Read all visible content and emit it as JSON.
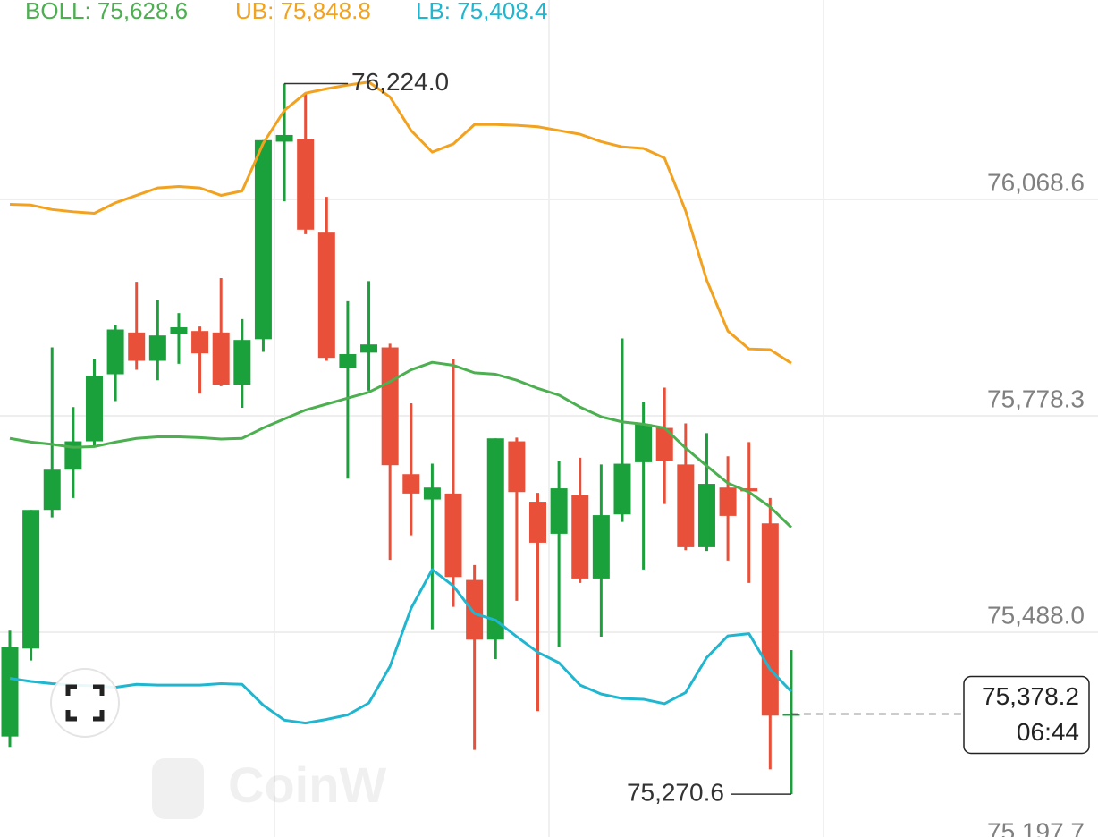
{
  "chart_data": {
    "type": "candlestick",
    "up_color": "#1ba13b",
    "down_color": "#e9503a",
    "categories": [
      null,
      null,
      null,
      null,
      null,
      null,
      null,
      null,
      null,
      null,
      null,
      null,
      null,
      null,
      null,
      null,
      null,
      null,
      null,
      null,
      null,
      null,
      null,
      null,
      null,
      null,
      null,
      null,
      null,
      null,
      null,
      null,
      null,
      null,
      null,
      null,
      null,
      null
    ],
    "open": [
      75348,
      75466,
      75652,
      75706,
      75744,
      75834,
      75890,
      75852,
      75888,
      75892,
      75890,
      75820,
      75881,
      76146,
      76150,
      76024,
      75843,
      75863,
      75870,
      75700,
      75666,
      75674,
      75558,
      75478,
      75744,
      75663,
      75620,
      75672,
      75560,
      75646,
      75716,
      75762,
      75713,
      75602,
      75682,
      75681,
      75634,
      75376
    ],
    "high": [
      75490,
      75652,
      75870,
      75790,
      75854,
      75900,
      75958,
      75933,
      75916,
      75898,
      75963,
      75908,
      76148,
      76224.0,
      76210,
      76072,
      75932,
      75959,
      75875,
      75795,
      75714,
      75854,
      75578,
      75748,
      75749,
      75675,
      75718,
      75722,
      75713,
      75882,
      75797,
      75816,
      75768,
      75755,
      75724,
      75743,
      75668,
      75464
    ],
    "low": [
      75334,
      75450,
      75642,
      75668,
      75738,
      75798,
      75840,
      75826,
      75848,
      75808,
      75818,
      75789,
      75864,
      76066,
      76022,
      75852,
      75694,
      75812,
      75585,
      75618,
      75492,
      75522,
      75330,
      75452,
      75530,
      75382,
      75468,
      75554,
      75482,
      75636,
      75572,
      75660,
      75598,
      75597,
      75584,
      75554,
      75304,
      75270.6
    ],
    "close": [
      75468,
      75652,
      75706,
      75744,
      75832,
      75894,
      75852,
      75886,
      75897,
      75862,
      75820,
      75880,
      76148,
      76155,
      76028,
      75856,
      75861,
      75874,
      75712,
      75674,
      75682,
      75562,
      75478,
      75748,
      75676,
      75608,
      75681,
      75560,
      75645,
      75714,
      75767,
      75718,
      75602,
      75687,
      75644,
      75677,
      75376,
      75378.2
    ],
    "series": [
      {
        "name": "BOLL: 75,628.6",
        "type": "line",
        "color": "#4caf50",
        "values": [
          75748,
          75743,
          75740,
          75736,
          75737,
          75743,
          75748,
          75750,
          75750,
          75749,
          75747,
          75748,
          75762,
          75774,
          75786,
          75794,
          75802,
          75810,
          75824,
          75840,
          75850,
          75846,
          75836,
          75834,
          75826,
          75815,
          75806,
          75790,
          75777,
          75770,
          75767,
          75762,
          75735,
          75711,
          75688,
          75676,
          75656,
          75628.6
        ]
      },
      {
        "name": "UB: 75,848.8",
        "type": "line",
        "color": "#f2a21f",
        "values": [
          76062,
          76061,
          76055,
          76052,
          76050,
          76064,
          76074,
          76084,
          76086,
          76084,
          76074,
          76080,
          76144,
          76188,
          76211,
          76217,
          76222,
          76226,
          76206,
          76161,
          76132,
          76143,
          76169,
          76169,
          76168,
          76166,
          76161,
          76156,
          76146,
          76139,
          76137,
          76124,
          76053,
          75960,
          75892,
          75868,
          75867,
          75848.8
        ]
      },
      {
        "name": "LB: 75,408.4",
        "type": "line",
        "color": "#20b6cf",
        "values": [
          75426,
          75422,
          75419,
          75417,
          75416,
          75414,
          75418,
          75417,
          75417,
          75417,
          75419,
          75418,
          75390,
          75370,
          75366,
          75371,
          75377,
          75393,
          75442,
          75520,
          75572,
          75550,
          75513,
          75504,
          75482,
          75461,
          75447,
          75417,
          75405,
          75399,
          75398,
          75392,
          75407,
          75454,
          75483,
          75486,
          75438,
          75408.4
        ]
      }
    ],
    "ylim": [
      75213.2,
      76336.1
    ],
    "yticks": [
      {
        "value": 76068.6,
        "label": "76,068.6"
      },
      {
        "value": 75778.3,
        "label": "75,778.3"
      },
      {
        "value": 75488.0,
        "label": "75,488.0"
      },
      {
        "value": 75197.7,
        "label": "75,197.7"
      }
    ],
    "grid": true,
    "annotations": [
      {
        "label": "76,224.0",
        "value": 76224.0,
        "kind": "high"
      },
      {
        "label": "75,270.6",
        "value": 75270.6,
        "kind": "low"
      }
    ],
    "current_price": {
      "label": "75,378.2",
      "value": 75378.2,
      "countdown": "06:44"
    },
    "watermark": "CoinW"
  }
}
